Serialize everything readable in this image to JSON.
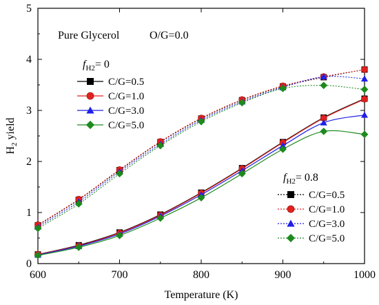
{
  "chart_data": {
    "type": "line",
    "title": "",
    "xlabel": "Temperature (K)",
    "ylabel_main": "H",
    "ylabel_sub": "2",
    "ylabel_tail": " yield",
    "xlim": [
      600,
      1000
    ],
    "ylim": [
      0,
      5
    ],
    "xticks": [
      600,
      700,
      800,
      900,
      1000
    ],
    "yticks": [
      0,
      1,
      2,
      3,
      4,
      5
    ],
    "grid": false,
    "annotations": [
      "Pure Glycerol",
      "O/G=0.0"
    ],
    "x": [
      600,
      650,
      700,
      750,
      800,
      850,
      900,
      950,
      1000
    ],
    "groups": [
      {
        "title_main": "f",
        "title_sub": "H2",
        "title_tail": "= 0",
        "legend_placement": "upper-left",
        "line_style": "solid",
        "series": [
          {
            "name": "C/G=0.5",
            "marker": "square",
            "color": "#000000",
            "values": [
              0.18,
              0.36,
              0.61,
              0.96,
              1.39,
              1.87,
              2.38,
              2.86,
              3.23
            ]
          },
          {
            "name": "C/G=1.0",
            "marker": "circle",
            "color": "#e0221e",
            "values": [
              0.18,
              0.35,
              0.6,
              0.95,
              1.38,
              1.86,
              2.37,
              2.85,
              3.22
            ]
          },
          {
            "name": "C/G=3.0",
            "marker": "triangle",
            "color": "#1f1fe8",
            "values": [
              0.17,
              0.34,
              0.58,
              0.93,
              1.35,
              1.82,
              2.31,
              2.76,
              2.91
            ]
          },
          {
            "name": "C/G=5.0",
            "marker": "diamond",
            "color": "#1d8a1d",
            "values": [
              0.16,
              0.32,
              0.55,
              0.89,
              1.29,
              1.76,
              2.24,
              2.59,
              2.53
            ]
          }
        ]
      },
      {
        "title_main": "f",
        "title_sub": "H2",
        "title_tail": "= 0.8",
        "legend_placement": "lower-right",
        "line_style": "dotted",
        "series": [
          {
            "name": "C/G=0.5",
            "marker": "square",
            "color": "#000000",
            "values": [
              0.75,
              1.25,
              1.83,
              2.38,
              2.84,
              3.2,
              3.47,
              3.65,
              3.8
            ]
          },
          {
            "name": "C/G=1.0",
            "marker": "circle",
            "color": "#e0221e",
            "values": [
              0.76,
              1.26,
              1.84,
              2.39,
              2.85,
              3.21,
              3.48,
              3.66,
              3.8
            ]
          },
          {
            "name": "C/G=3.0",
            "marker": "triangle",
            "color": "#1f1fe8",
            "values": [
              0.72,
              1.21,
              1.8,
              2.34,
              2.81,
              3.17,
              3.45,
              3.66,
              3.62
            ]
          },
          {
            "name": "C/G=5.0",
            "marker": "diamond",
            "color": "#1d8a1d",
            "values": [
              0.69,
              1.17,
              1.76,
              2.31,
              2.78,
              3.15,
              3.43,
              3.49,
              3.41
            ]
          }
        ]
      }
    ]
  }
}
